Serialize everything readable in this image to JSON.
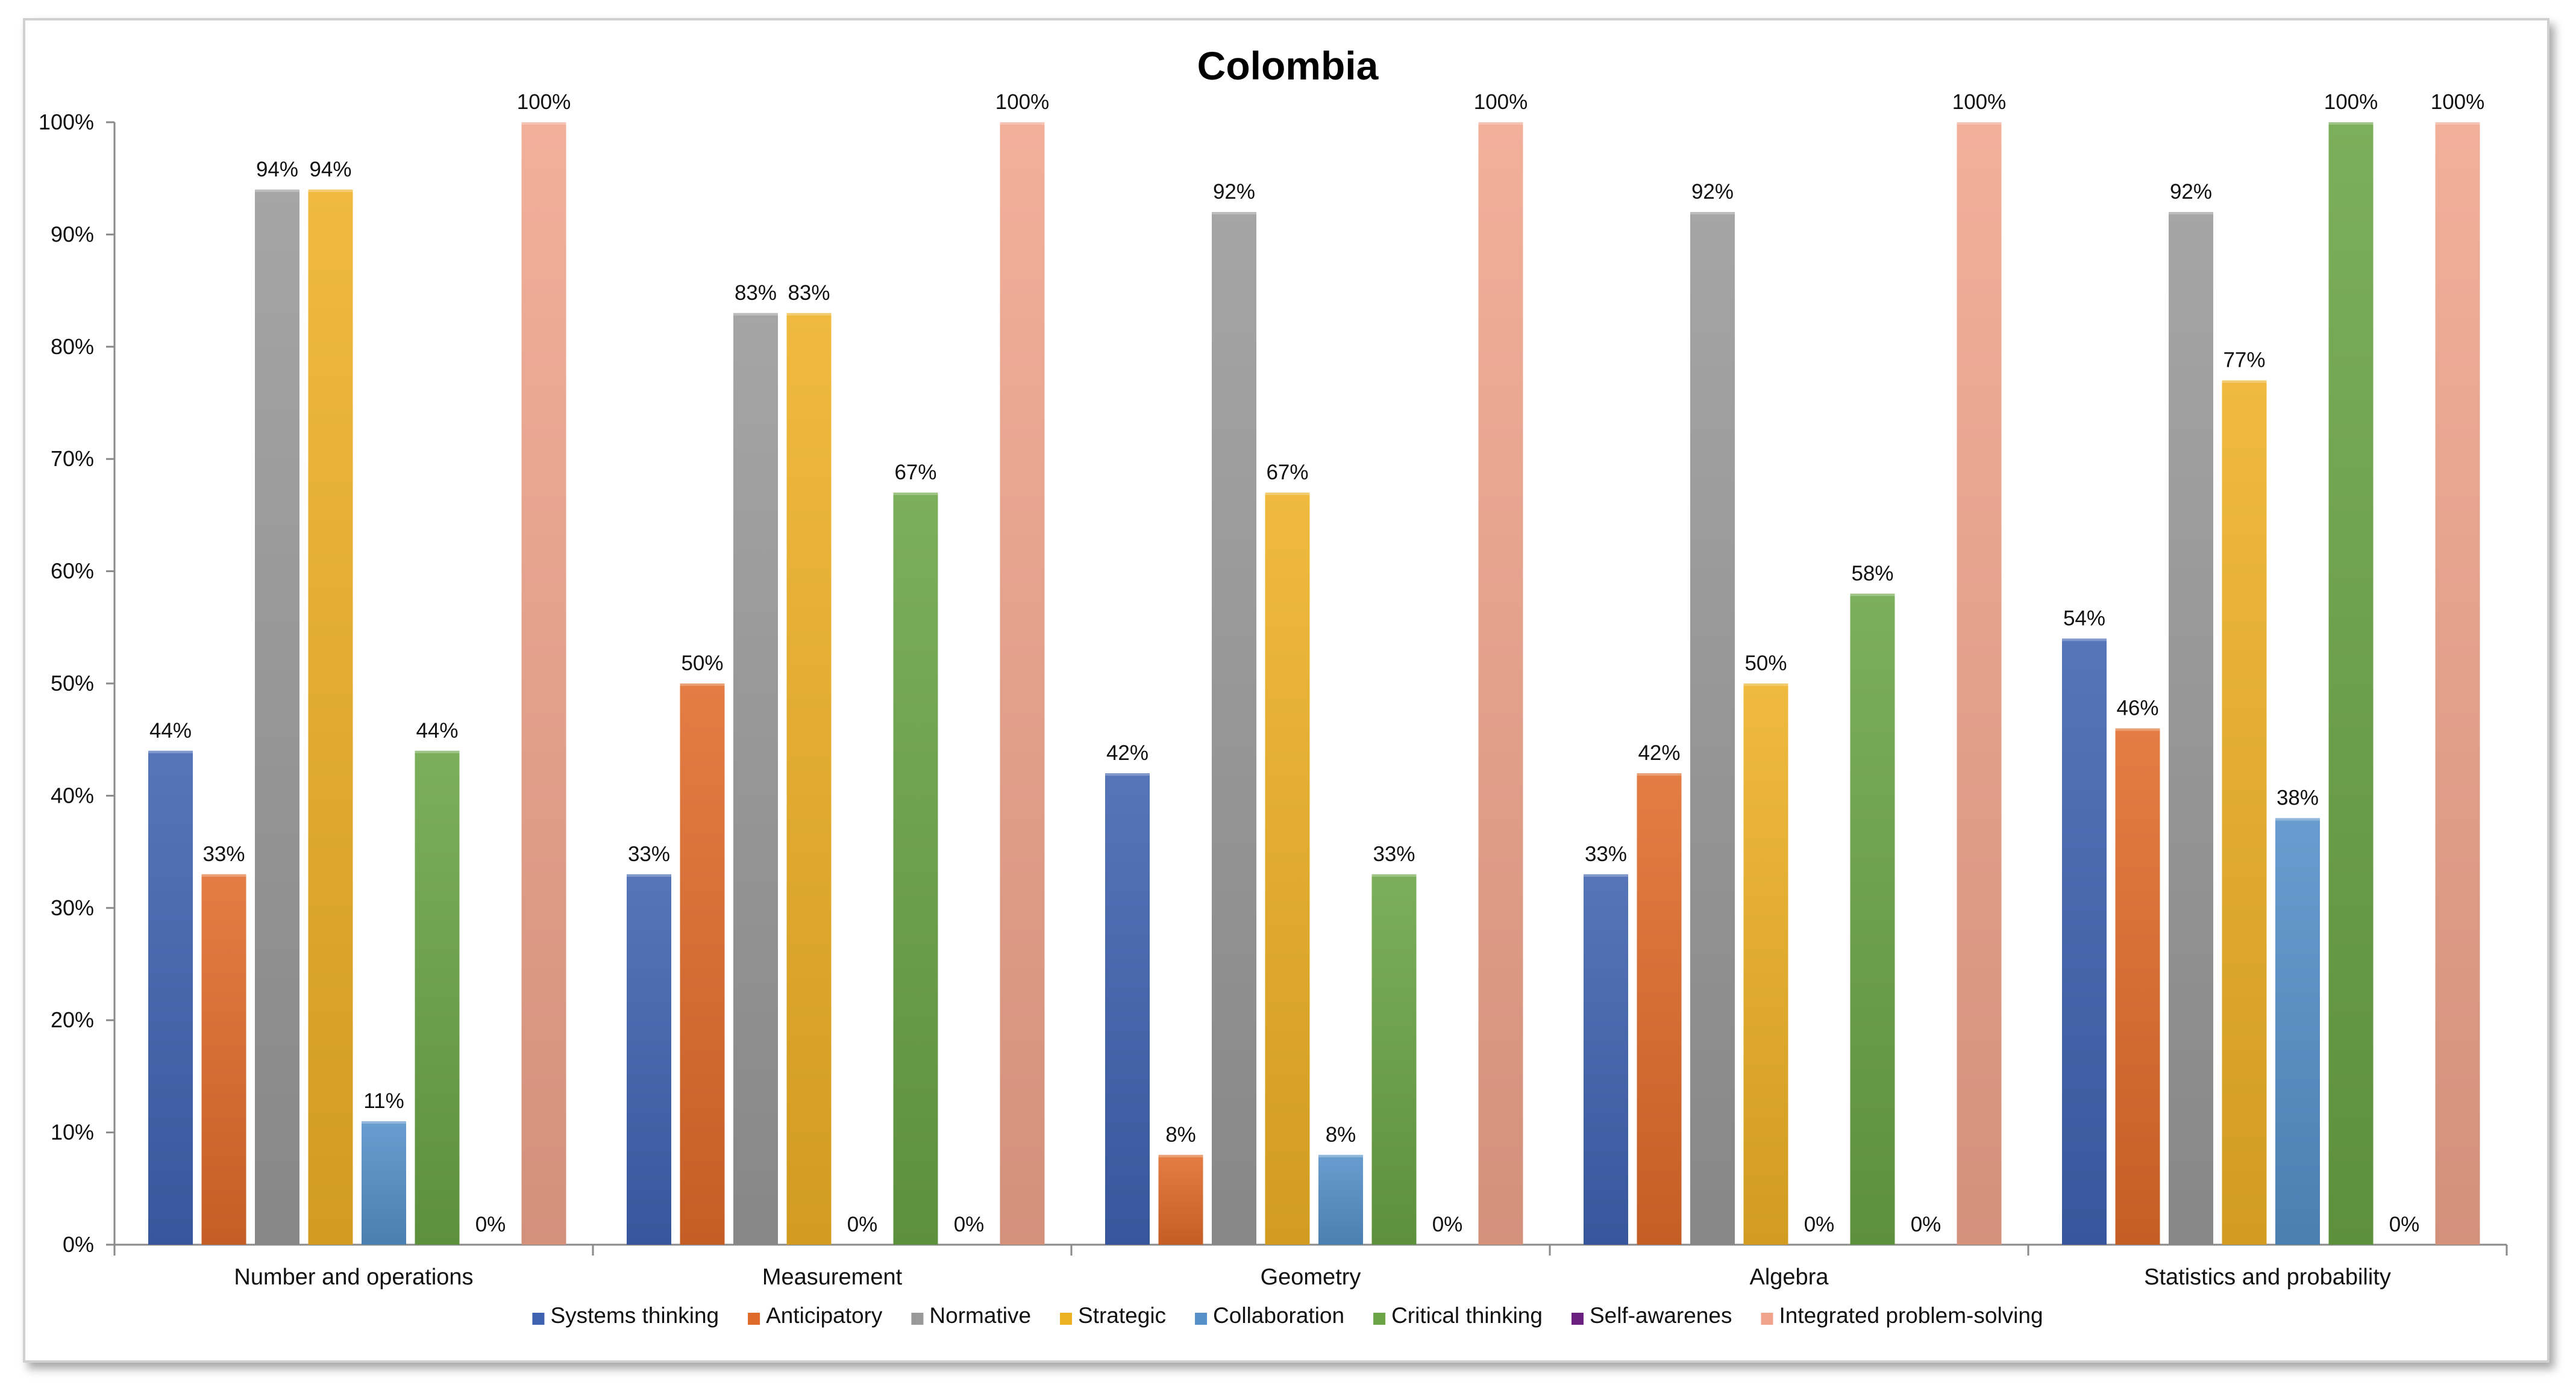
{
  "chart_data": {
    "type": "bar",
    "title": "Colombia",
    "xlabel": "",
    "ylabel": "",
    "ylim": [
      0,
      100
    ],
    "yticks": [
      "0%",
      "10%",
      "20%",
      "30%",
      "40%",
      "50%",
      "60%",
      "70%",
      "80%",
      "90%",
      "100%"
    ],
    "grid": false,
    "legend_position": "bottom",
    "categories": [
      "Number and operations",
      "Measurement",
      "Geometry",
      "Algebra",
      "Statistics and probability"
    ],
    "series": [
      {
        "name": "Systems thinking",
        "color": "#3f62b0",
        "values": [
          44,
          33,
          42,
          33,
          54
        ],
        "labels": [
          "44%",
          "33%",
          "42%",
          "33%",
          "54%"
        ]
      },
      {
        "name": "Anticipatory",
        "color": "#df6b2a",
        "values": [
          33,
          50,
          8,
          42,
          46
        ],
        "labels": [
          "33%",
          "50%",
          "8%",
          "42%",
          "46%"
        ]
      },
      {
        "name": "Normative",
        "color": "#999999",
        "values": [
          94,
          83,
          92,
          92,
          92
        ],
        "labels": [
          "94%",
          "83%",
          "92%",
          "92%",
          "92%"
        ]
      },
      {
        "name": "Strategic",
        "color": "#edb124",
        "values": [
          94,
          83,
          67,
          50,
          77
        ],
        "labels": [
          "94%",
          "83%",
          "67%",
          "50%",
          "77%"
        ]
      },
      {
        "name": "Collaboration",
        "color": "#5590c8",
        "values": [
          11,
          0,
          8,
          0,
          38
        ],
        "labels": [
          "11%",
          "0%",
          "8%",
          "0%",
          "38%"
        ]
      },
      {
        "name": "Critical thinking",
        "color": "#6aa445",
        "values": [
          44,
          67,
          33,
          58,
          100
        ],
        "labels": [
          "44%",
          "67%",
          "33%",
          "58%",
          "100%"
        ]
      },
      {
        "name": "Self-awarenes",
        "color": "#6b1f7f",
        "values": [
          0,
          0,
          0,
          0,
          0
        ],
        "labels": [
          "0%",
          "0%",
          "0%",
          "0%",
          "0%"
        ]
      },
      {
        "name": "Integrated problem-solving",
        "color": "#f0a48c",
        "values": [
          100,
          100,
          100,
          100,
          100
        ],
        "labels": [
          "100%",
          "100%",
          "100%",
          "100%",
          "100%"
        ]
      }
    ]
  }
}
